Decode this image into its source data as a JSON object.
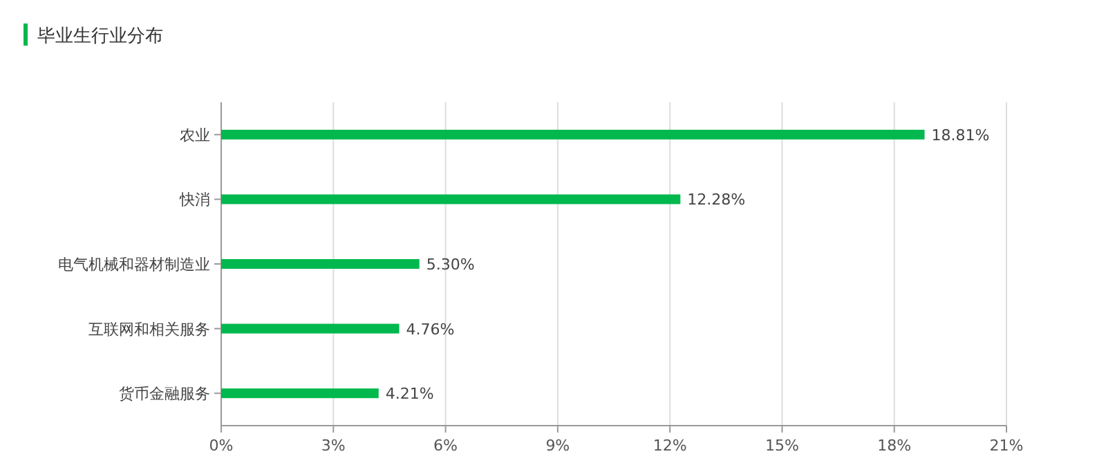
{
  "chart_data": {
    "type": "bar",
    "orientation": "horizontal",
    "title": "毕业生行业分布",
    "categories": [
      "农业",
      "快消",
      "电气机械和器材制造业",
      "互联网和相关服务",
      "货币金融服务"
    ],
    "values": [
      18.81,
      12.28,
      5.3,
      4.76,
      4.21
    ],
    "value_labels": [
      "18.81%",
      "12.28%",
      "5.30%",
      "4.76%",
      "4.21%"
    ],
    "color": "#00b84d",
    "xlim": [
      0,
      21
    ],
    "xticks": [
      {
        "value": 0,
        "label": "0%"
      },
      {
        "value": 3,
        "label": "3%"
      },
      {
        "value": 6,
        "label": "6%"
      },
      {
        "value": 9,
        "label": "9%"
      },
      {
        "value": 12,
        "label": "12%"
      },
      {
        "value": 15,
        "label": "15%"
      },
      {
        "value": 18,
        "label": "18%"
      },
      {
        "value": 21,
        "label": "21%"
      }
    ],
    "grid": "x"
  }
}
